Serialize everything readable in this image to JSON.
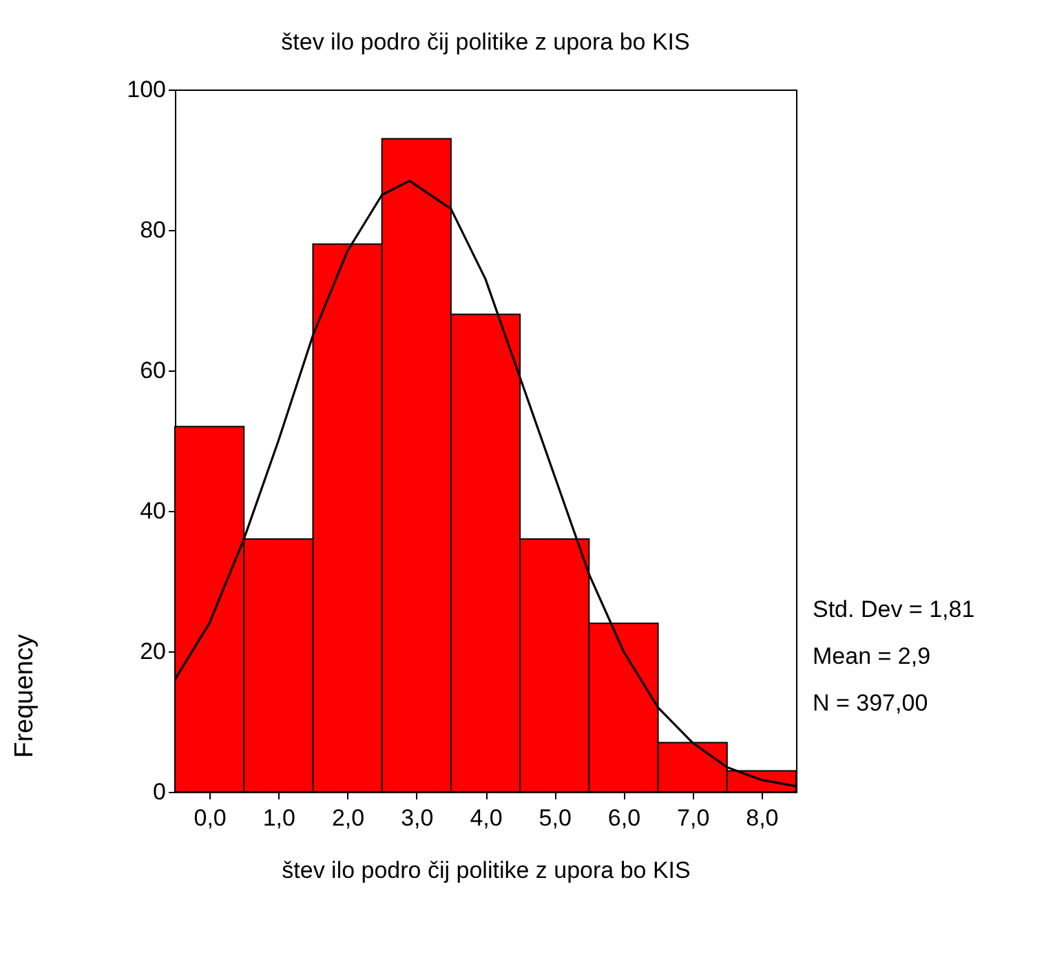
{
  "chart_data": {
    "type": "histogram",
    "title": "štev ilo podro čij politike z upora bo KIS",
    "xlabel": "štev ilo podro čij politike z upora bo KIS",
    "ylabel": "Frequency",
    "bins": [
      -0.5,
      0.5,
      1.5,
      2.5,
      3.5,
      4.5,
      5.5,
      6.5,
      7.5,
      8.5
    ],
    "values": [
      52,
      36,
      78,
      93,
      68,
      36,
      24,
      7,
      3
    ],
    "color": "#ff0000",
    "series": [
      {
        "type": "line",
        "color": "#000000",
        "x": [
          -0.5,
          0,
          0.5,
          1,
          1.5,
          2,
          2.5,
          2.9,
          3.5,
          4,
          4.5,
          5,
          5.5,
          6,
          6.5,
          7,
          7.5,
          8,
          8.5
        ],
        "values": [
          16,
          24,
          36,
          50,
          65,
          77,
          85,
          87,
          83,
          73,
          59,
          45,
          31,
          20,
          12,
          7,
          3.5,
          1.7,
          0.8
        ]
      }
    ],
    "xlim": [
      -0.5,
      8.5
    ],
    "xticks": [
      {
        "value": 0,
        "label": "0,0"
      },
      {
        "value": 1,
        "label": "1,0"
      },
      {
        "value": 2,
        "label": "2,0"
      },
      {
        "value": 3,
        "label": "3,0"
      },
      {
        "value": 4,
        "label": "4,0"
      },
      {
        "value": 5,
        "label": "5,0"
      },
      {
        "value": 6,
        "label": "6,0"
      },
      {
        "value": 7,
        "label": "7,0"
      },
      {
        "value": 8,
        "label": "8,0"
      }
    ],
    "ylim": [
      0,
      100
    ],
    "yticks": [
      0,
      20,
      40,
      60,
      80,
      100
    ],
    "annotations": [
      "Std. Dev = 1,81",
      "Mean = 2,9",
      "N = 397,00"
    ],
    "grid": false
  }
}
